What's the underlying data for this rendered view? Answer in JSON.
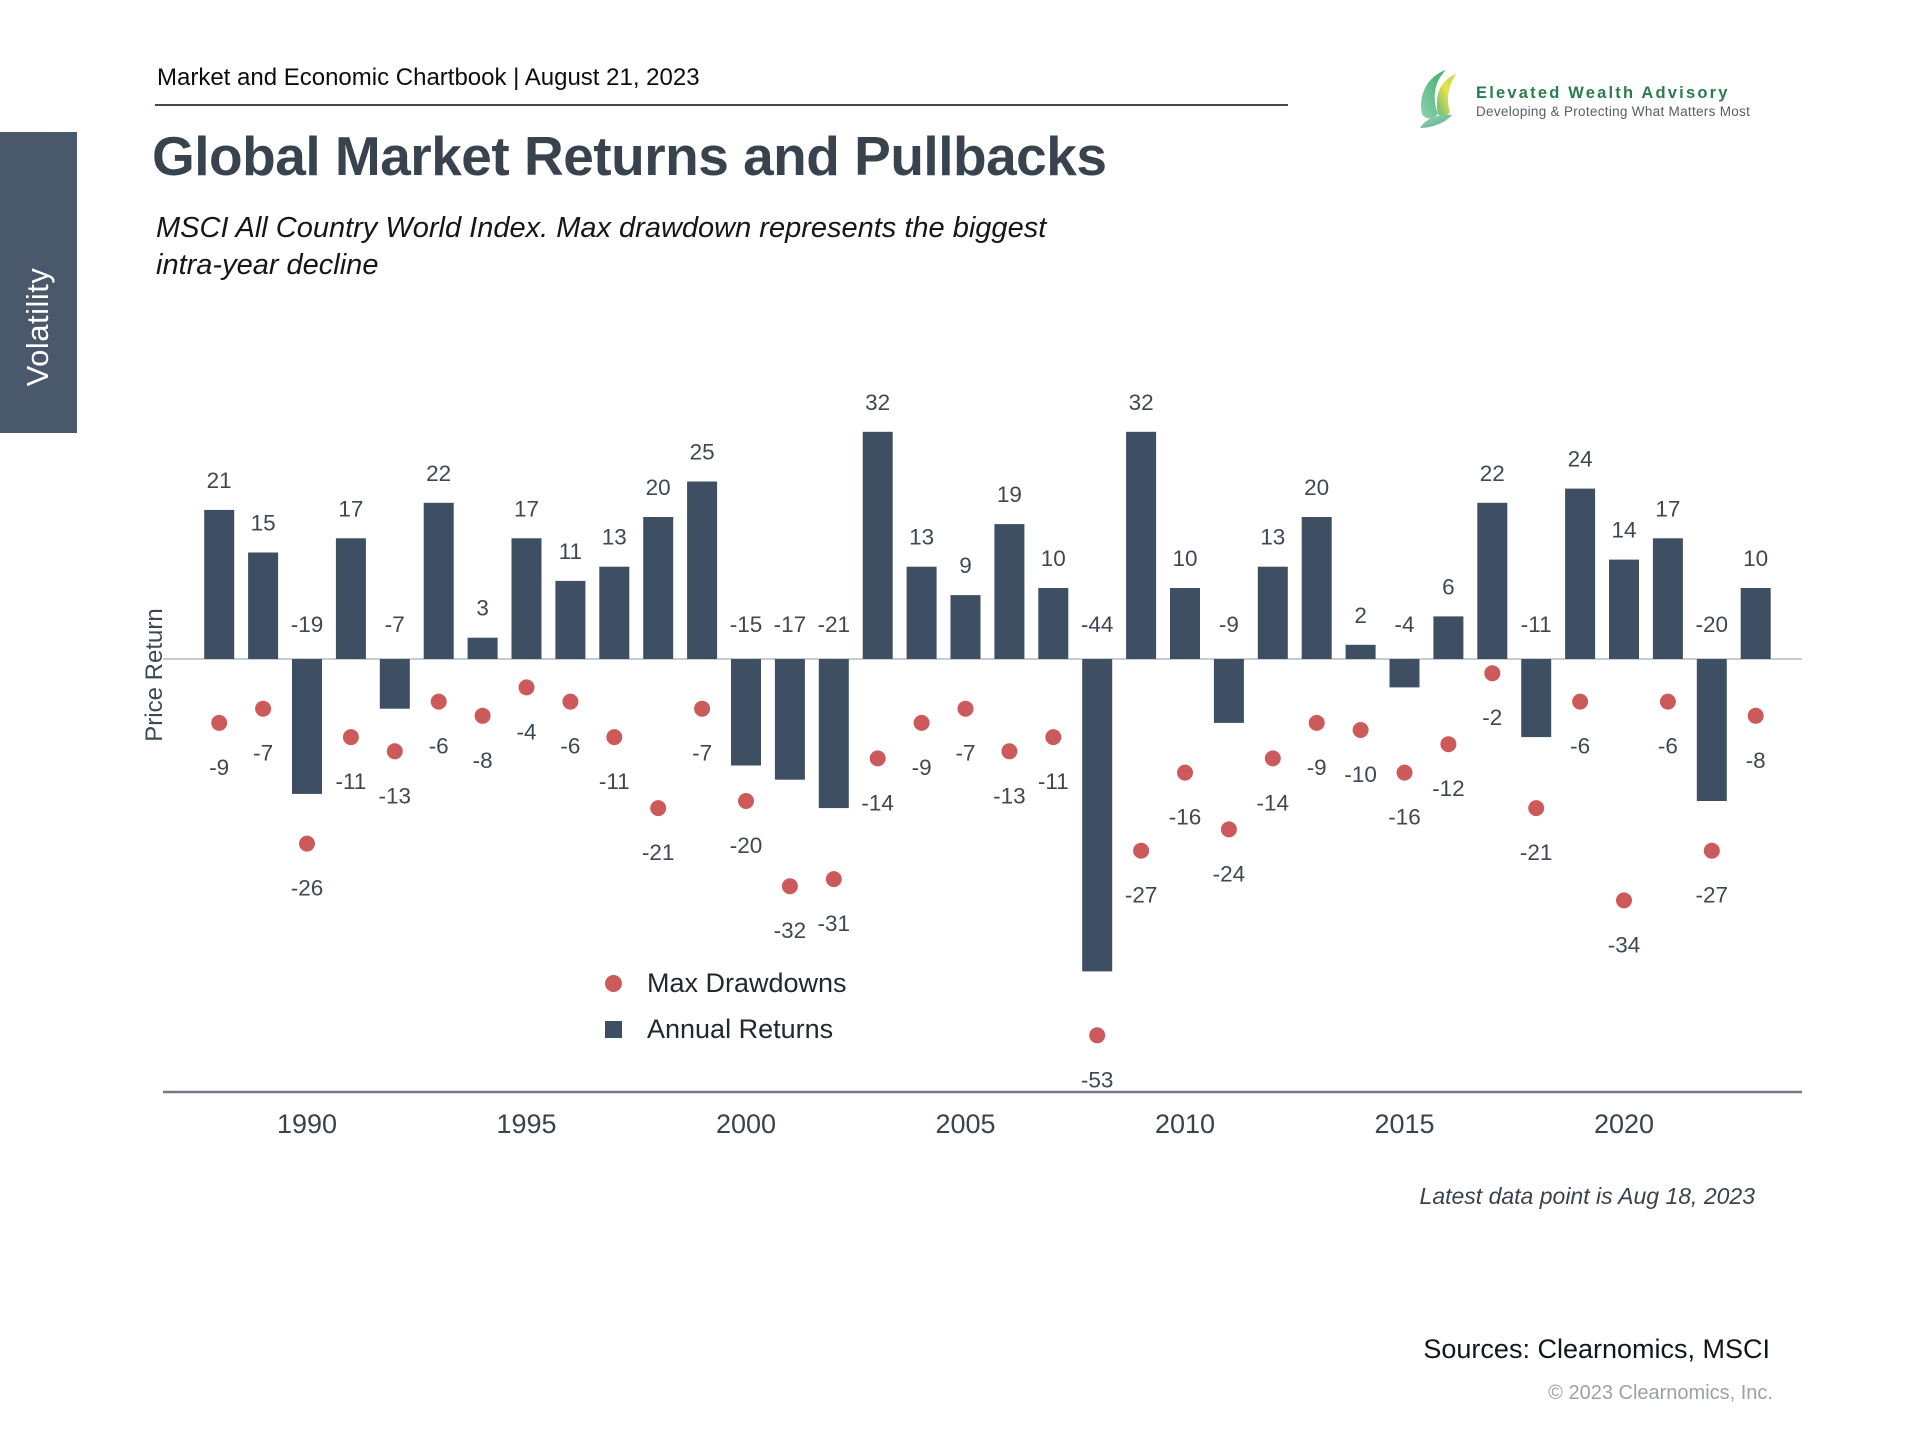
{
  "sidebar": {
    "label": "Volatility",
    "bg_color": "#4a586b"
  },
  "header": {
    "eyebrow": "Market and Economic Chartbook | August 21, 2023",
    "title": "Global Market Returns and Pullbacks",
    "subtitle_line1": "MSCI All Country World Index. Max drawdown represents the biggest",
    "subtitle_line2": "intra-year decline"
  },
  "logo": {
    "name": "Elevated Wealth Advisory",
    "tagline": "Developing & Protecting What Matters Most",
    "brand_green": "#2b7c4e"
  },
  "chart_data": {
    "type": "bar",
    "title": "Global Market Returns and Pullbacks",
    "xlabel": "",
    "ylabel": "Price Return",
    "x": [
      1988,
      1989,
      1990,
      1991,
      1992,
      1993,
      1994,
      1995,
      1996,
      1997,
      1998,
      1999,
      2000,
      2001,
      2002,
      2003,
      2004,
      2005,
      2006,
      2007,
      2008,
      2009,
      2010,
      2011,
      2012,
      2013,
      2014,
      2015,
      2016,
      2017,
      2018,
      2019,
      2020,
      2021,
      2022,
      2023
    ],
    "series": [
      {
        "name": "Annual Returns",
        "type": "bar",
        "color": "#3e4f63",
        "values": [
          21,
          15,
          -19,
          17,
          -7,
          22,
          3,
          17,
          11,
          13,
          20,
          25,
          -15,
          -17,
          -21,
          32,
          13,
          9,
          19,
          10,
          -44,
          32,
          10,
          -9,
          13,
          20,
          2,
          -4,
          6,
          22,
          -11,
          24,
          14,
          17,
          -20,
          10
        ]
      },
      {
        "name": "Max Drawdowns",
        "type": "scatter",
        "color": "#cd5a5a",
        "values": [
          -9,
          -7,
          -26,
          -11,
          -13,
          -6,
          -8,
          -4,
          -6,
          -11,
          -21,
          -7,
          -20,
          -32,
          -31,
          -14,
          -9,
          -7,
          -13,
          -11,
          -53,
          -27,
          -16,
          -24,
          -14,
          -9,
          -10,
          -16,
          -12,
          -2,
          -21,
          -6,
          -34,
          -6,
          -27,
          -8
        ]
      }
    ],
    "x_ticks": [
      1990,
      1995,
      2000,
      2005,
      2010,
      2015,
      2020
    ],
    "ylim": [
      -60,
      40
    ],
    "grid": false,
    "data_labels": true,
    "legend_position": "inside-bottom-left",
    "label_color": "#3d4853",
    "axis_color": "#6f7a85",
    "zero_line_color": "#b6bcc2"
  },
  "legend": {
    "max_drawdowns": "Max Drawdowns",
    "annual_returns": "Annual Returns"
  },
  "footnotes": {
    "latest": "Latest data point is Aug 18, 2023",
    "sources": "Sources: Clearnomics, MSCI",
    "copyright": "© 2023 Clearnomics, Inc."
  }
}
